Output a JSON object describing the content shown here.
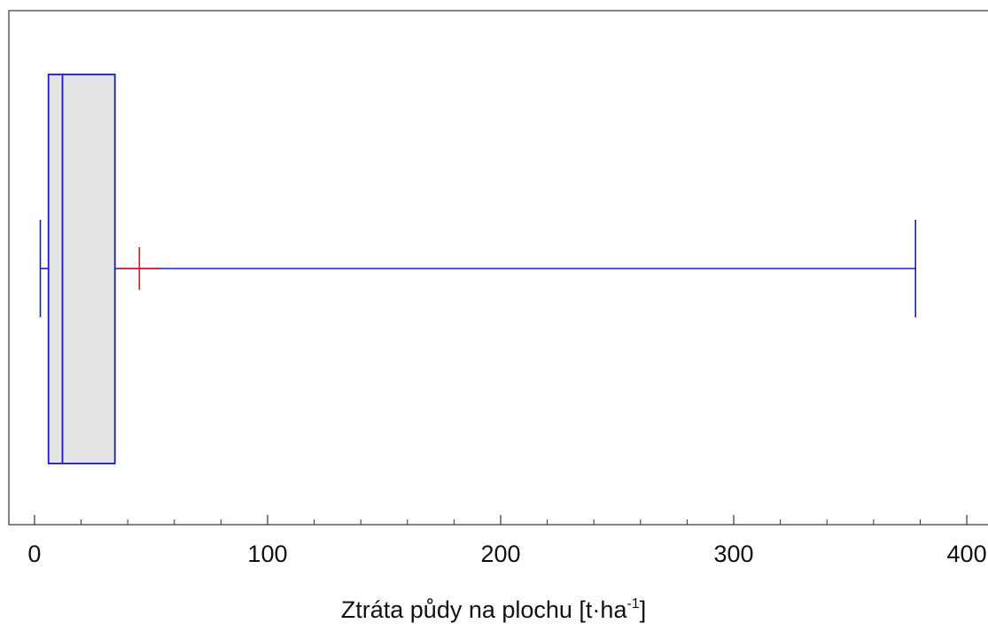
{
  "chart_data": {
    "type": "boxplot",
    "orientation": "horizontal",
    "title": "",
    "xlabel": "Ztráta půdy na plochu [t·ha",
    "xlabel_superscript": "-1",
    "xlabel_suffix": "]",
    "ylabel": "",
    "xlim": [
      -11,
      411
    ],
    "x_ticks_major": [
      0,
      100,
      200,
      300,
      400
    ],
    "x_tick_labels": [
      "0",
      "100",
      "200",
      "300",
      "400"
    ],
    "x_ticks_minor": [
      20,
      40,
      60,
      80,
      120,
      140,
      160,
      180,
      220,
      240,
      260,
      280,
      320,
      340,
      360,
      380
    ],
    "grid": false,
    "legend": "none",
    "box": {
      "min": 2.5,
      "q1": 6,
      "median": 12,
      "q3": 34.5,
      "max": 378,
      "mean": 45
    },
    "colors": {
      "box_stroke": "#1a1acc",
      "box_fill": "#e4e4e4",
      "whisker": "#1a1acc",
      "mean_marker": "#dd1111",
      "axis": "#333333",
      "text": "#111111"
    }
  }
}
